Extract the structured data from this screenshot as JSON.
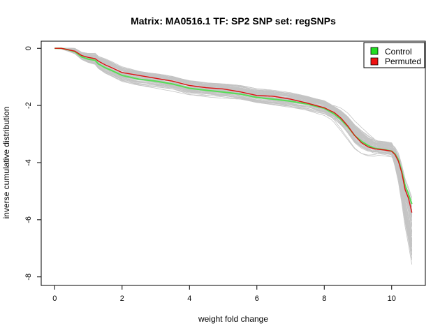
{
  "chart_data": {
    "type": "line",
    "title": "Matrix: MA0516.1 TF: SP2 SNP set: regSNPs",
    "xlabel": "weight fold change",
    "ylabel": "inverse cumulative distribution",
    "xlim": [
      -0.4,
      11.0
    ],
    "ylim": [
      -8.3,
      0.25
    ],
    "x_ticks": [
      0,
      2,
      4,
      6,
      8,
      10
    ],
    "y_ticks": [
      0,
      -2,
      -4,
      -6,
      -8
    ],
    "grid": false,
    "legend_position": "top-right",
    "legend": [
      {
        "label": "Control",
        "color": "#22dd22"
      },
      {
        "label": "Permuted",
        "color": "#ee1111"
      }
    ],
    "series": [
      {
        "name": "Control",
        "color": "#55dd55",
        "x": [
          0.0,
          0.2,
          0.4,
          0.6,
          0.8,
          1.0,
          1.2,
          1.3,
          1.5,
          1.7,
          2.0,
          2.5,
          3.0,
          3.5,
          4.0,
          4.5,
          5.0,
          5.5,
          6.0,
          6.5,
          7.0,
          7.5,
          8.0,
          8.3,
          8.5,
          8.7,
          8.9,
          9.1,
          9.3,
          9.5,
          9.8,
          10.0,
          10.1,
          10.2,
          10.3,
          10.4,
          10.5,
          10.6
        ],
        "values": [
          0.0,
          0.0,
          -0.05,
          -0.12,
          -0.3,
          -0.38,
          -0.42,
          -0.55,
          -0.68,
          -0.78,
          -0.95,
          -1.08,
          -1.15,
          -1.25,
          -1.4,
          -1.47,
          -1.53,
          -1.6,
          -1.72,
          -1.78,
          -1.85,
          -1.95,
          -2.1,
          -2.3,
          -2.5,
          -2.75,
          -3.05,
          -3.25,
          -3.4,
          -3.5,
          -3.55,
          -3.6,
          -3.7,
          -3.9,
          -4.3,
          -4.8,
          -5.1,
          -5.45
        ]
      },
      {
        "name": "Permuted",
        "color": "#dd1111",
        "x": [
          0.0,
          0.2,
          0.4,
          0.6,
          0.8,
          1.0,
          1.2,
          1.3,
          1.5,
          1.7,
          2.0,
          2.5,
          3.0,
          3.5,
          4.0,
          4.5,
          5.0,
          5.5,
          6.0,
          6.5,
          7.0,
          7.5,
          8.0,
          8.3,
          8.5,
          8.7,
          8.9,
          9.1,
          9.3,
          9.5,
          9.8,
          10.0,
          10.1,
          10.2,
          10.3,
          10.4,
          10.5,
          10.6
        ],
        "values": [
          0.0,
          0.0,
          -0.05,
          -0.1,
          -0.25,
          -0.32,
          -0.36,
          -0.45,
          -0.58,
          -0.68,
          -0.85,
          -0.95,
          -1.05,
          -1.15,
          -1.3,
          -1.38,
          -1.42,
          -1.52,
          -1.65,
          -1.68,
          -1.78,
          -1.92,
          -2.08,
          -2.25,
          -2.45,
          -2.72,
          -3.05,
          -3.3,
          -3.45,
          -3.52,
          -3.56,
          -3.6,
          -3.72,
          -3.95,
          -4.35,
          -4.95,
          -5.25,
          -5.75
        ]
      }
    ]
  }
}
